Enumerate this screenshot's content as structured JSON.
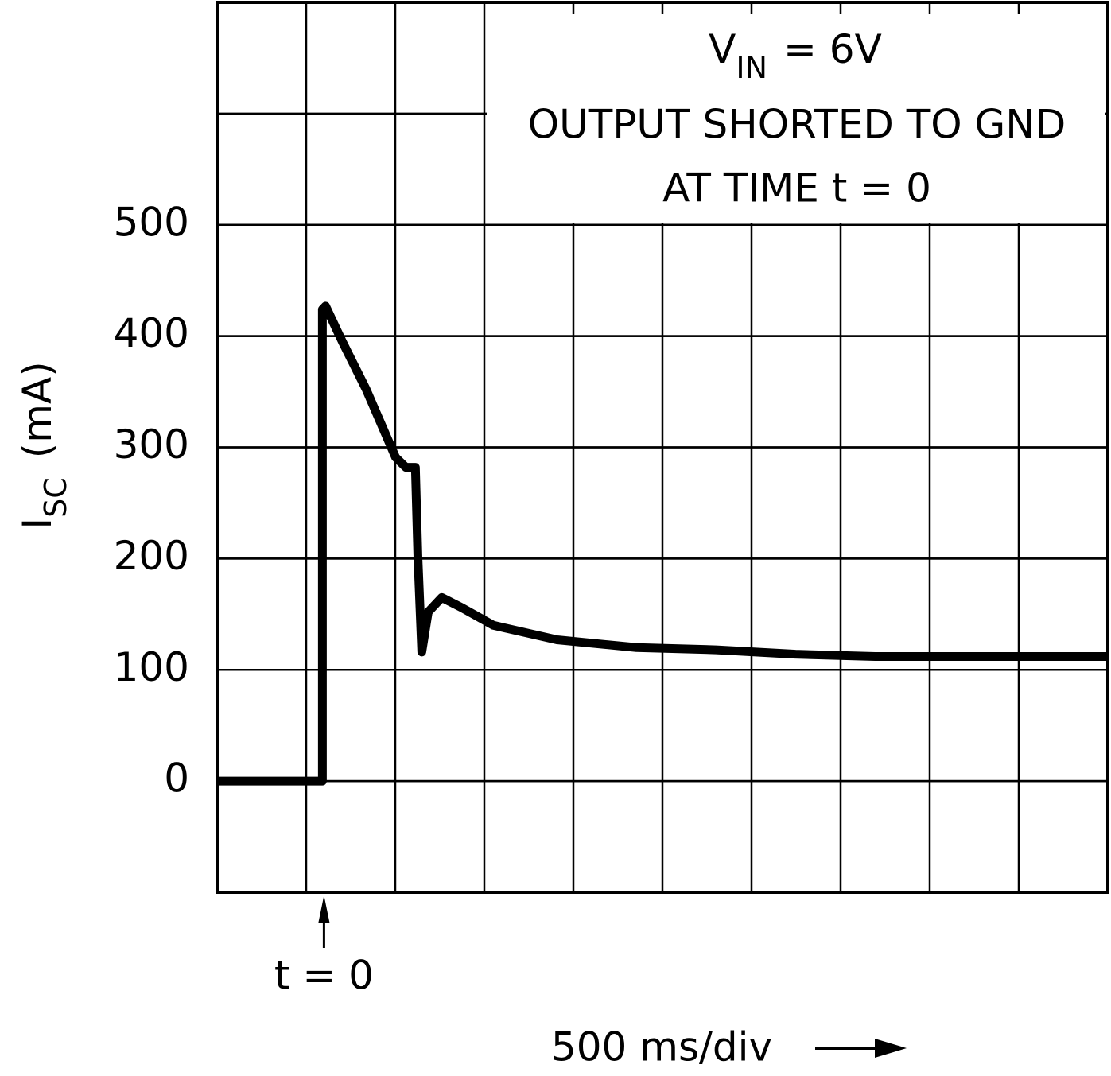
{
  "chart_data": {
    "type": "line",
    "y_label": {
      "symbol": "I",
      "sub": "SC",
      "unit": "(mA)"
    },
    "x_label": "500 ms/div",
    "marker_label": "t = 0",
    "annotation": {
      "symbol": "V",
      "sub": "IN",
      "text": "= 6V",
      "lines": [
        "OUTPUT SHORTED TO GND",
        "AT TIME t = 0"
      ]
    },
    "x": [
      -600,
      -9,
      -9,
      9,
      103,
      237,
      402,
      460,
      513,
      527,
      549,
      585,
      661,
      772,
      951,
      1308,
      1754,
      2201,
      2647,
      3094,
      4400
    ],
    "series": [
      {
        "name": "Isc",
        "color": "#000000",
        "values": [
          0,
          0,
          424,
          427,
          395,
          352,
          291,
          282,
          282,
          202,
          116,
          152,
          165,
          156,
          140,
          127,
          120,
          118,
          114,
          112,
          112
        ]
      }
    ],
    "xlim": [
      -600,
      4400
    ],
    "ylim": [
      -100,
      700
    ],
    "yticks": [
      0,
      100,
      200,
      300,
      400,
      500
    ],
    "grid": true
  }
}
